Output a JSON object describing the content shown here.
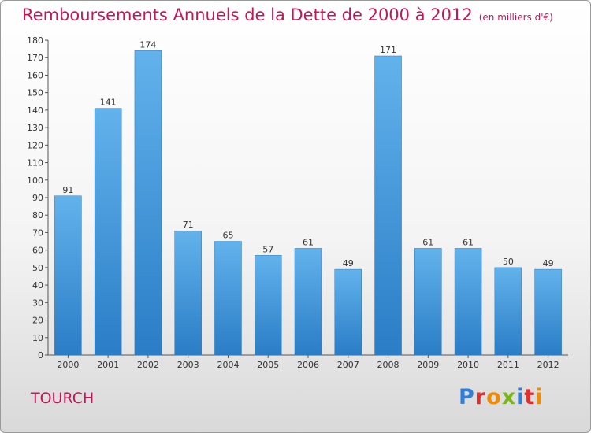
{
  "title": "Remboursements Annuels de la Dette de 2000 à 2012",
  "unit": "(en milliers d'€)",
  "location": "TOURCH",
  "logo": {
    "text": "Proxiti"
  },
  "chart_data": {
    "type": "bar",
    "categories": [
      "2000",
      "2001",
      "2002",
      "2003",
      "2004",
      "2005",
      "2006",
      "2007",
      "2008",
      "2009",
      "2010",
      "2011",
      "2012"
    ],
    "values": [
      91,
      141,
      174,
      71,
      65,
      57,
      61,
      49,
      171,
      61,
      61,
      50,
      49
    ],
    "ylim": [
      0,
      180
    ],
    "yticks": [
      0,
      10,
      20,
      30,
      40,
      50,
      60,
      70,
      80,
      90,
      100,
      110,
      120,
      130,
      140,
      150,
      160,
      170,
      180
    ],
    "bar_color": "#3d95dc",
    "grid": false,
    "legend": "none"
  }
}
